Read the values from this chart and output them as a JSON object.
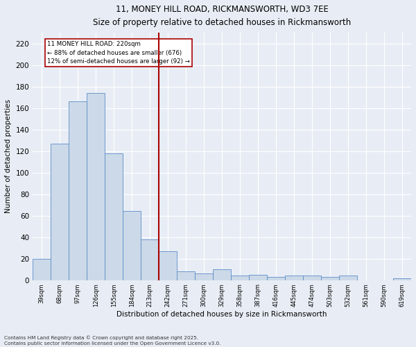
{
  "title_line1": "11, MONEY HILL ROAD, RICKMANSWORTH, WD3 7EE",
  "title_line2": "Size of property relative to detached houses in Rickmansworth",
  "xlabel": "Distribution of detached houses by size in Rickmansworth",
  "ylabel": "Number of detached properties",
  "categories": [
    "39sqm",
    "68sqm",
    "97sqm",
    "126sqm",
    "155sqm",
    "184sqm",
    "213sqm",
    "242sqm",
    "271sqm",
    "300sqm",
    "329sqm",
    "358sqm",
    "387sqm",
    "416sqm",
    "445sqm",
    "474sqm",
    "503sqm",
    "532sqm",
    "561sqm",
    "590sqm",
    "619sqm"
  ],
  "bar_values": [
    20,
    127,
    166,
    174,
    118,
    64,
    38,
    27,
    8,
    6,
    10,
    4,
    5,
    3,
    4,
    4,
    3,
    4,
    0,
    0,
    2
  ],
  "bar_color": "#ccd9e8",
  "bar_edge_color": "#5b8dc8",
  "vline_x_index": 6.5,
  "vline_color": "#aa0000",
  "annotation_text": "11 MONEY HILL ROAD: 220sqm\n← 88% of detached houses are smaller (676)\n12% of semi-detached houses are larger (92) →",
  "annotation_box_color": "#aa0000",
  "ylim_max": 230,
  "yticks": [
    0,
    20,
    40,
    60,
    80,
    100,
    120,
    140,
    160,
    180,
    200,
    220
  ],
  "footer_line1": "Contains HM Land Registry data © Crown copyright and database right 2025.",
  "footer_line2": "Contains public sector information licensed under the Open Government Licence v3.0.",
  "bg_color": "#e8edf5",
  "plot_bg_color": "#e8edf5"
}
